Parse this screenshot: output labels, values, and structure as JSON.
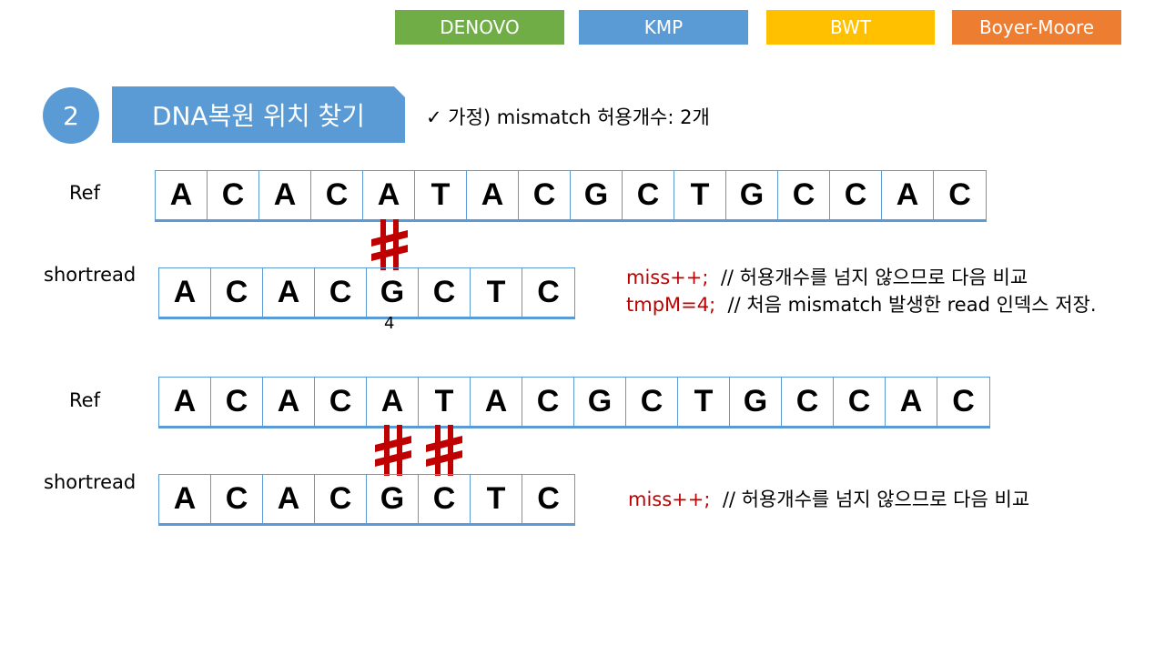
{
  "tabs": [
    {
      "label": "DENOVO",
      "color": "#70ad47"
    },
    {
      "label": "KMP",
      "color": "#5b9bd5"
    },
    {
      "label": "BWT",
      "color": "#ffc000"
    },
    {
      "label": "Boyer-Moore",
      "color": "#ed7d31"
    }
  ],
  "step": {
    "number": "2",
    "title": "DNA복원 위치 찾기"
  },
  "assumption": "✓ 가정) mismatch 허용개수: 2개",
  "ref_label": "Ref",
  "read_label": "shortread",
  "ref_seq": [
    "A",
    "C",
    "A",
    "C",
    "A",
    "T",
    "A",
    "C",
    "G",
    "C",
    "T",
    "G",
    "C",
    "C",
    "A",
    "C"
  ],
  "read_seq": [
    "A",
    "C",
    "A",
    "C",
    "G",
    "C",
    "T",
    "C"
  ],
  "mismatch_index_label": "4",
  "comparison1": {
    "mismatch_positions": [
      4
    ],
    "note_line1_code": "miss++;",
    "note_line1_comment": "// 허용개수를 넘지 않으므로 다음 비교",
    "note_line2_code": "tmpM=4;",
    "note_line2_comment": "// 처음 mismatch 발생한 read 인덱스 저장."
  },
  "comparison2": {
    "mismatch_positions": [
      4,
      5
    ],
    "note_line1_code": "miss++;",
    "note_line1_comment": "// 허용개수를 넘지 않으므로 다음 비교"
  },
  "colors": {
    "accent": "#5b9bd5",
    "mismatch": "#c00000",
    "code": "#c00000"
  }
}
